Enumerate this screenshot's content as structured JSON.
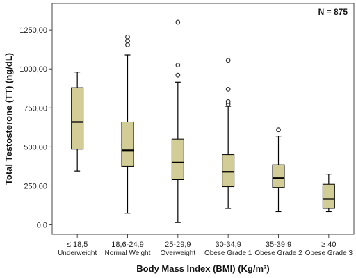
{
  "chart_data": {
    "type": "box",
    "annotation": "N = 875",
    "xlabel": "Body Mass Index (BMI) (Kg/m²)",
    "ylabel": "Total Testosterone (TT) (ng/dL)",
    "ylim": [
      -60,
      1420
    ],
    "yticks": [
      0,
      250,
      500,
      750,
      1000,
      1250
    ],
    "ytick_labels": [
      "0,0",
      "250,00",
      "500,00",
      "750,00",
      "1000,00",
      "1250,00"
    ],
    "grid": false,
    "colors": {
      "box_fill": "#d2cd96",
      "stroke": "#000000",
      "frame": "#444444"
    },
    "categories": [
      {
        "range": "≤ 18,5",
        "label": "Underweight",
        "whisker_low": 345,
        "q1": 485,
        "median": 660,
        "q3": 880,
        "whisker_high": 980,
        "outliers": []
      },
      {
        "range": "18,6-24,9",
        "label": "Normal Weight",
        "whisker_low": 75,
        "q1": 375,
        "median": 478,
        "q3": 660,
        "whisker_high": 1090,
        "outliers": [
          1155,
          1180,
          1205
        ]
      },
      {
        "range": "25-29,9",
        "label": "Overweight",
        "whisker_low": 15,
        "q1": 290,
        "median": 400,
        "q3": 550,
        "whisker_high": 915,
        "outliers": [
          960,
          1025,
          1300
        ]
      },
      {
        "range": "30-34,9",
        "label": "Obese Grade 1",
        "whisker_low": 105,
        "q1": 245,
        "median": 340,
        "q3": 450,
        "whisker_high": 760,
        "outliers": [
          775,
          790,
          870,
          1055
        ]
      },
      {
        "range": "35-39,9",
        "label": "Obese Grade 2",
        "whisker_low": 85,
        "q1": 240,
        "median": 300,
        "q3": 385,
        "whisker_high": 570,
        "outliers": [
          610
        ]
      },
      {
        "range": "≥ 40",
        "label": "Obese Grade 3",
        "whisker_low": 85,
        "q1": 105,
        "median": 165,
        "q3": 260,
        "whisker_high": 325,
        "outliers": []
      }
    ]
  }
}
